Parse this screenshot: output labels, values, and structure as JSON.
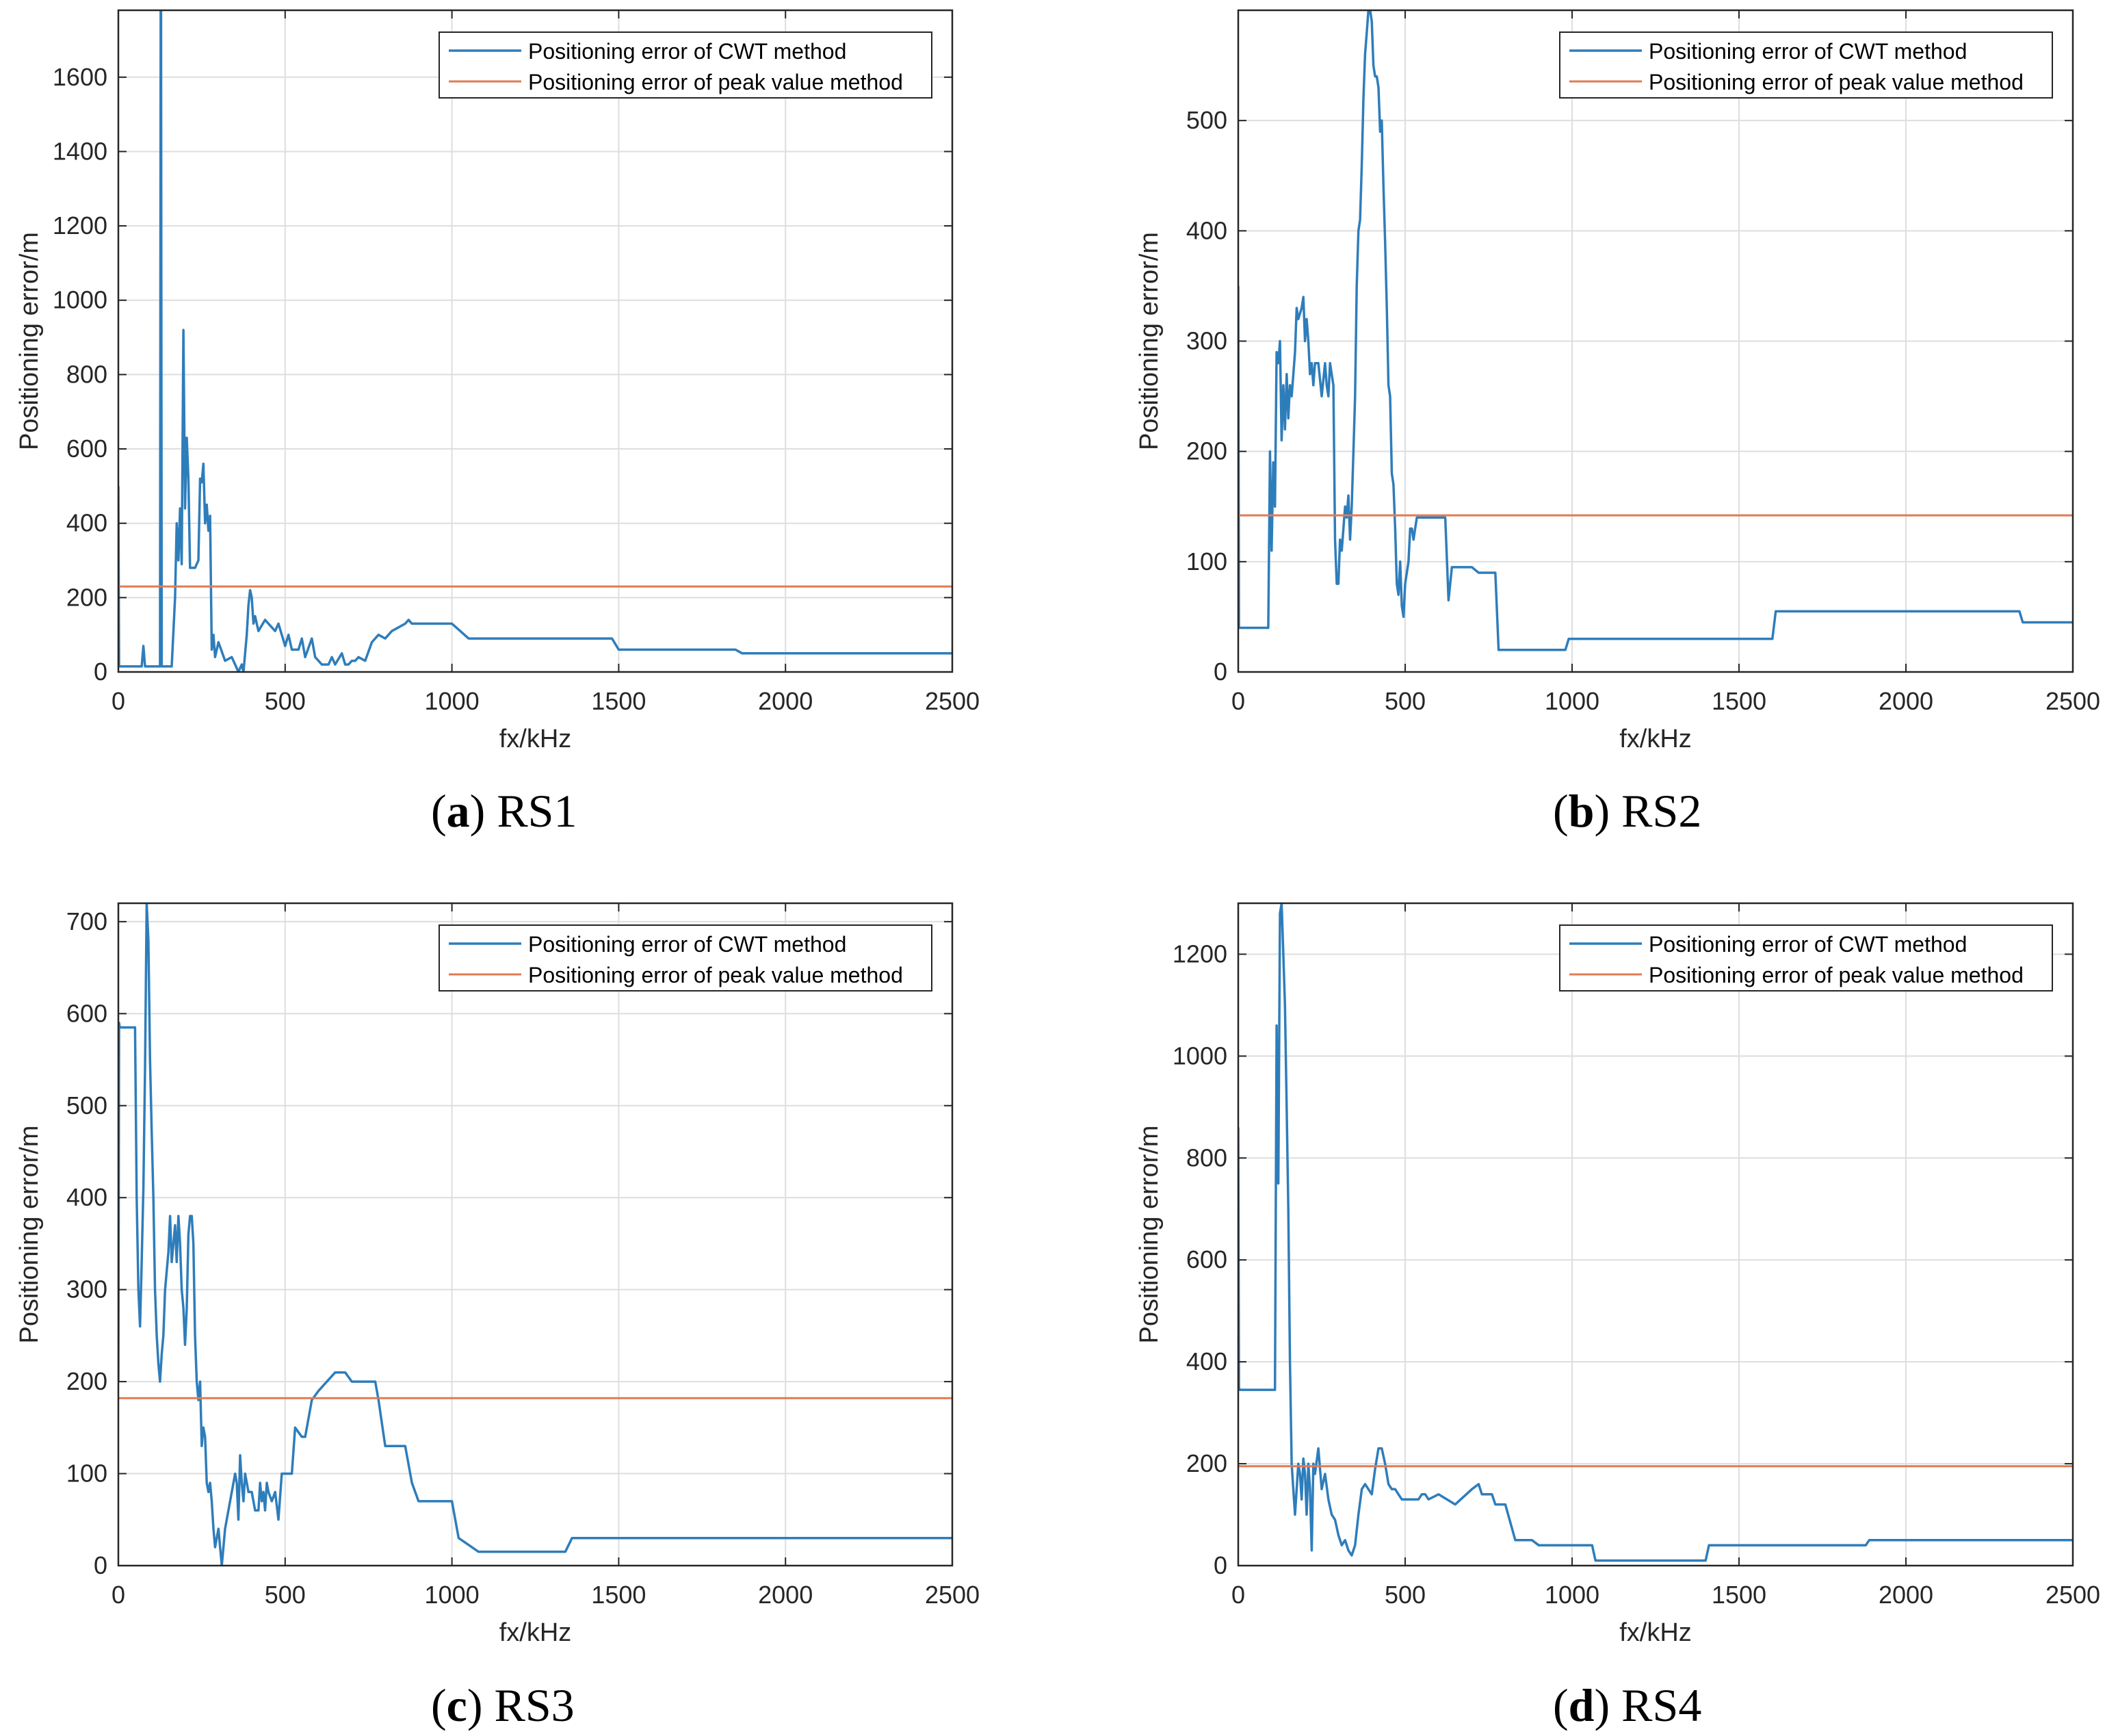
{
  "colors": {
    "cwt": "#2E7DBB",
    "peak": "#E07B52",
    "grid": "#DEDEDE",
    "axis": "#262626",
    "text": "#262626"
  },
  "chart_data": [
    {
      "type": "line",
      "caption_letter": "a",
      "caption_text": "RS1",
      "xlabel": "fx/kHz",
      "ylabel": "Positioning error/m",
      "xlim": [
        0,
        2500
      ],
      "ylim": [
        0,
        1780
      ],
      "xticks": [
        0,
        500,
        1000,
        1500,
        2000,
        2500
      ],
      "yticks": [
        0,
        200,
        400,
        600,
        800,
        1000,
        1200,
        1400,
        1600
      ],
      "grid": true,
      "legend_position": "top-right",
      "series": [
        {
          "name": "Positioning error of CWT method",
          "x": [
            0,
            2,
            4,
            8,
            70,
            75,
            80,
            125,
            127,
            128,
            130,
            132,
            140,
            160,
            170,
            175,
            180,
            185,
            190,
            195,
            200,
            205,
            210,
            215,
            220,
            225,
            230,
            240,
            245,
            250,
            255,
            260,
            265,
            270,
            275,
            280,
            285,
            290,
            300,
            320,
            340,
            350,
            360,
            370,
            375,
            380,
            385,
            390,
            395,
            400,
            405,
            410,
            420,
            440,
            470,
            480,
            500,
            510,
            520,
            540,
            550,
            560,
            580,
            590,
            600,
            610,
            630,
            640,
            650,
            670,
            680,
            690,
            700,
            710,
            720,
            740,
            760,
            780,
            800,
            820,
            840,
            860,
            870,
            880,
            900,
            1000,
            1050,
            1100,
            1480,
            1500,
            1850,
            1870,
            2500
          ],
          "values": [
            500,
            15,
            15,
            15,
            15,
            70,
            15,
            15,
            1780,
            1780,
            15,
            15,
            15,
            15,
            200,
            400,
            300,
            440,
            290,
            920,
            440,
            630,
            520,
            280,
            280,
            280,
            280,
            300,
            520,
            510,
            560,
            400,
            450,
            380,
            420,
            60,
            100,
            40,
            80,
            30,
            40,
            20,
            0,
            20,
            0,
            50,
            100,
            180,
            220,
            200,
            130,
            150,
            110,
            140,
            110,
            130,
            70,
            100,
            60,
            60,
            90,
            40,
            90,
            40,
            30,
            20,
            20,
            40,
            20,
            50,
            20,
            20,
            30,
            30,
            40,
            30,
            80,
            100,
            90,
            110,
            120,
            130,
            140,
            130,
            130,
            130,
            90,
            90,
            90,
            60,
            60,
            50,
            50
          ]
        },
        {
          "name": "Positioning error of peak value method",
          "x": [
            0,
            2500
          ],
          "values": [
            230,
            230
          ]
        }
      ]
    },
    {
      "type": "line",
      "caption_letter": "b",
      "caption_text": "RS2",
      "xlabel": "fx/kHz",
      "ylabel": "Positioning error/m",
      "xlim": [
        0,
        2500
      ],
      "ylim": [
        0,
        600
      ],
      "xticks": [
        0,
        500,
        1000,
        1500,
        2000,
        2500
      ],
      "yticks": [
        0,
        100,
        200,
        300,
        400,
        500
      ],
      "grid": true,
      "legend_position": "top-right",
      "series": [
        {
          "name": "Positioning error of CWT method",
          "x": [
            0,
            2,
            5,
            90,
            95,
            100,
            105,
            110,
            115,
            120,
            125,
            130,
            135,
            140,
            145,
            150,
            155,
            160,
            170,
            175,
            180,
            190,
            195,
            200,
            205,
            210,
            215,
            220,
            225,
            230,
            240,
            250,
            260,
            265,
            270,
            275,
            280,
            285,
            290,
            295,
            300,
            305,
            310,
            320,
            325,
            330,
            335,
            340,
            345,
            350,
            355,
            360,
            365,
            370,
            375,
            380,
            385,
            390,
            395,
            400,
            405,
            410,
            415,
            420,
            425,
            430,
            435,
            440,
            445,
            450,
            455,
            460,
            465,
            470,
            475,
            480,
            485,
            490,
            495,
            500,
            505,
            510,
            515,
            520,
            525,
            530,
            535,
            540,
            550,
            560,
            570,
            580,
            620,
            630,
            640,
            660,
            700,
            720,
            770,
            780,
            790,
            800,
            980,
            990,
            1000,
            1600,
            1610,
            2340,
            2350,
            2500
          ],
          "values": [
            350,
            40,
            40,
            40,
            200,
            110,
            190,
            150,
            290,
            280,
            300,
            210,
            260,
            220,
            270,
            230,
            260,
            250,
            290,
            330,
            320,
            330,
            340,
            300,
            320,
            300,
            270,
            280,
            260,
            280,
            280,
            250,
            280,
            260,
            250,
            280,
            270,
            260,
            120,
            80,
            80,
            120,
            110,
            150,
            140,
            160,
            120,
            150,
            200,
            250,
            350,
            400,
            410,
            460,
            520,
            560,
            580,
            600,
            600,
            590,
            550,
            540,
            540,
            530,
            490,
            500,
            440,
            390,
            330,
            260,
            250,
            180,
            170,
            130,
            80,
            70,
            100,
            60,
            50,
            80,
            90,
            100,
            130,
            130,
            120,
            130,
            140,
            140,
            140,
            140,
            140,
            140,
            140,
            65,
            95,
            95,
            95,
            90,
            90,
            20,
            20,
            20,
            20,
            30,
            30,
            30,
            55,
            55,
            45,
            45
          ]
        },
        {
          "name": "Positioning error of peak value method",
          "x": [
            0,
            2500
          ],
          "values": [
            142,
            142
          ]
        }
      ]
    },
    {
      "type": "line",
      "caption_letter": "c",
      "caption_text": "RS3",
      "xlabel": "fx/kHz",
      "ylabel": "Positioning error/m",
      "xlim": [
        0,
        2500
      ],
      "ylim": [
        0,
        720
      ],
      "xticks": [
        0,
        500,
        1000,
        1500,
        2000,
        2500
      ],
      "yticks": [
        0,
        100,
        200,
        300,
        400,
        500,
        600,
        700
      ],
      "grid": true,
      "legend_position": "top-right",
      "series": [
        {
          "name": "Positioning error of CWT method",
          "x": [
            0,
            2,
            4,
            50,
            55,
            60,
            65,
            70,
            75,
            80,
            85,
            90,
            95,
            100,
            105,
            110,
            115,
            120,
            125,
            130,
            135,
            140,
            145,
            150,
            155,
            160,
            165,
            170,
            175,
            180,
            185,
            190,
            195,
            200,
            205,
            210,
            215,
            220,
            225,
            230,
            235,
            240,
            245,
            250,
            255,
            260,
            265,
            270,
            275,
            280,
            285,
            290,
            300,
            310,
            320,
            330,
            340,
            350,
            355,
            360,
            365,
            370,
            375,
            380,
            390,
            400,
            410,
            420,
            425,
            430,
            435,
            440,
            445,
            450,
            460,
            470,
            480,
            490,
            500,
            510,
            520,
            530,
            550,
            560,
            580,
            600,
            650,
            680,
            700,
            770,
            780,
            800,
            820,
            850,
            860,
            880,
            900,
            920,
            1000,
            1020,
            1080,
            1320,
            1340,
            1360,
            1560,
            1570,
            2500
          ],
          "values": [
            200,
            590,
            585,
            585,
            400,
            300,
            260,
            330,
            410,
            540,
            720,
            680,
            550,
            470,
            400,
            300,
            250,
            220,
            200,
            230,
            250,
            300,
            320,
            340,
            380,
            330,
            350,
            370,
            330,
            380,
            350,
            300,
            280,
            240,
            280,
            360,
            380,
            380,
            350,
            250,
            200,
            180,
            200,
            130,
            150,
            140,
            90,
            80,
            90,
            70,
            40,
            20,
            40,
            0,
            40,
            60,
            80,
            100,
            90,
            50,
            120,
            90,
            70,
            100,
            80,
            80,
            60,
            60,
            90,
            70,
            80,
            60,
            90,
            80,
            70,
            80,
            50,
            100,
            100,
            100,
            100,
            150,
            140,
            140,
            180,
            190,
            210,
            210,
            200,
            200,
            180,
            130,
            130,
            130,
            130,
            90,
            70,
            70,
            70,
            30,
            15,
            15,
            15,
            30,
            30,
            30,
            30
          ]
        },
        {
          "name": "Positioning error of peak value method",
          "x": [
            0,
            2500
          ],
          "values": [
            182,
            182
          ]
        }
      ]
    },
    {
      "type": "line",
      "caption_letter": "d",
      "caption_text": "RS4",
      "xlabel": "fx/kHz",
      "ylabel": "Positioning error/m",
      "xlim": [
        0,
        2500
      ],
      "ylim": [
        0,
        1300
      ],
      "xticks": [
        0,
        500,
        1000,
        1500,
        2000,
        2500
      ],
      "yticks": [
        0,
        200,
        400,
        600,
        800,
        1000,
        1200
      ],
      "grid": true,
      "legend_position": "top-right",
      "series": [
        {
          "name": "Positioning error of CWT method",
          "x": [
            0,
            2,
            4,
            110,
            115,
            120,
            125,
            130,
            135,
            140,
            145,
            150,
            155,
            160,
            165,
            170,
            175,
            180,
            185,
            190,
            195,
            200,
            205,
            210,
            215,
            220,
            225,
            230,
            240,
            250,
            260,
            270,
            280,
            290,
            300,
            310,
            320,
            330,
            340,
            350,
            360,
            370,
            380,
            390,
            400,
            410,
            420,
            430,
            440,
            450,
            460,
            470,
            480,
            490,
            500,
            510,
            520,
            530,
            540,
            550,
            560,
            570,
            600,
            650,
            700,
            720,
            730,
            740,
            750,
            760,
            770,
            780,
            800,
            830,
            880,
            900,
            950,
            1000,
            1060,
            1070,
            1200,
            1210,
            1400,
            1410,
            1880,
            1890,
            1950,
            1960,
            2500
          ],
          "values": [
            860,
            350,
            345,
            345,
            1060,
            750,
            1280,
            1300,
            1200,
            1100,
            900,
            700,
            400,
            200,
            150,
            100,
            150,
            200,
            180,
            130,
            210,
            180,
            100,
            200,
            150,
            30,
            200,
            180,
            230,
            150,
            180,
            130,
            100,
            90,
            60,
            40,
            50,
            30,
            20,
            40,
            100,
            150,
            160,
            150,
            140,
            190,
            230,
            230,
            200,
            160,
            150,
            150,
            140,
            130,
            130,
            130,
            130,
            130,
            130,
            140,
            140,
            130,
            140,
            120,
            150,
            160,
            140,
            140,
            140,
            140,
            120,
            120,
            120,
            50,
            50,
            40,
            40,
            40,
            40,
            10,
            10,
            10,
            10,
            40,
            40,
            50,
            50,
            50,
            50
          ]
        },
        {
          "name": "Positioning error of peak value method",
          "x": [
            0,
            2500
          ],
          "values": [
            195,
            195
          ]
        }
      ]
    }
  ]
}
